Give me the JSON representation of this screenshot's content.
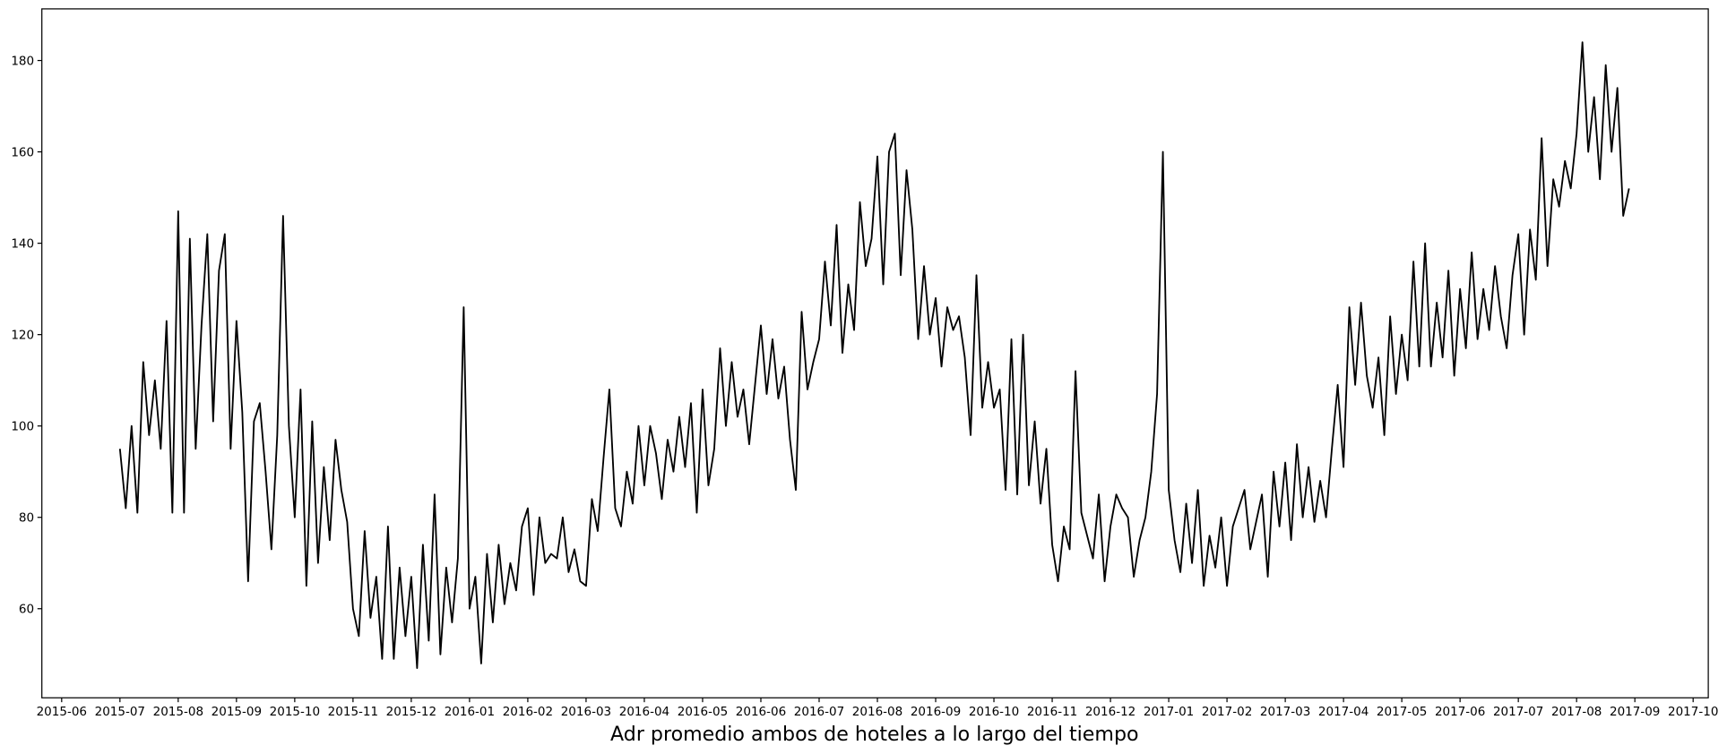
{
  "chart_data": {
    "type": "line",
    "xlabel": "Adr promedio ambos de hoteles a lo largo del tiempo",
    "color": "#000000",
    "xlim": [
      -0.34,
      28.26
    ],
    "ylim": [
      40.5,
      191.3
    ],
    "xticks": [
      {
        "value": 0,
        "label": "2015-06"
      },
      {
        "value": 1,
        "label": "2015-07"
      },
      {
        "value": 2,
        "label": "2015-08"
      },
      {
        "value": 3,
        "label": "2015-09"
      },
      {
        "value": 4,
        "label": "2015-10"
      },
      {
        "value": 5,
        "label": "2015-11"
      },
      {
        "value": 6,
        "label": "2015-12"
      },
      {
        "value": 7,
        "label": "2016-01"
      },
      {
        "value": 8,
        "label": "2016-02"
      },
      {
        "value": 9,
        "label": "2016-03"
      },
      {
        "value": 10,
        "label": "2016-04"
      },
      {
        "value": 11,
        "label": "2016-05"
      },
      {
        "value": 12,
        "label": "2016-06"
      },
      {
        "value": 13,
        "label": "2016-07"
      },
      {
        "value": 14,
        "label": "2016-08"
      },
      {
        "value": 15,
        "label": "2016-09"
      },
      {
        "value": 16,
        "label": "2016-10"
      },
      {
        "value": 17,
        "label": "2016-11"
      },
      {
        "value": 18,
        "label": "2016-12"
      },
      {
        "value": 19,
        "label": "2017-01"
      },
      {
        "value": 20,
        "label": "2017-02"
      },
      {
        "value": 21,
        "label": "2017-03"
      },
      {
        "value": 22,
        "label": "2017-04"
      },
      {
        "value": 23,
        "label": "2017-05"
      },
      {
        "value": 24,
        "label": "2017-06"
      },
      {
        "value": 25,
        "label": "2017-07"
      },
      {
        "value": 26,
        "label": "2017-08"
      },
      {
        "value": 27,
        "label": "2017-09"
      },
      {
        "value": 28,
        "label": "2017-10"
      }
    ],
    "yticks": [
      60,
      80,
      100,
      120,
      140,
      160,
      180
    ],
    "x": [
      1,
      1.1,
      1.2,
      1.3,
      1.4,
      1.5,
      1.6,
      1.7,
      1.8,
      1.9,
      2,
      2.1,
      2.2,
      2.3,
      2.4,
      2.5,
      2.6,
      2.7,
      2.8,
      2.9,
      3,
      3.1,
      3.2,
      3.3,
      3.4,
      3.5,
      3.6,
      3.7,
      3.8,
      3.9,
      4,
      4.1,
      4.2,
      4.3,
      4.4,
      4.5,
      4.6,
      4.7,
      4.8,
      4.9,
      5,
      5.1,
      5.2,
      5.3,
      5.4,
      5.5,
      5.6,
      5.7,
      5.8,
      5.9,
      6,
      6.1,
      6.2,
      6.3,
      6.4,
      6.5,
      6.6,
      6.7,
      6.8,
      6.9,
      7,
      7.1,
      7.2,
      7.3,
      7.4,
      7.5,
      7.6,
      7.7,
      7.8,
      7.9,
      8,
      8.1,
      8.2,
      8.3,
      8.4,
      8.5,
      8.6,
      8.7,
      8.8,
      8.9,
      9,
      9.1,
      9.2,
      9.3,
      9.4,
      9.5,
      9.6,
      9.7,
      9.8,
      9.9,
      10,
      10.1,
      10.2,
      10.3,
      10.4,
      10.5,
      10.6,
      10.7,
      10.8,
      10.9,
      11,
      11.1,
      11.2,
      11.3,
      11.4,
      11.5,
      11.6,
      11.7,
      11.8,
      11.9,
      12,
      12.1,
      12.2,
      12.3,
      12.4,
      12.5,
      12.6,
      12.7,
      12.8,
      12.9,
      13,
      13.1,
      13.2,
      13.3,
      13.4,
      13.5,
      13.6,
      13.7,
      13.8,
      13.9,
      14,
      14.1,
      14.2,
      14.3,
      14.4,
      14.5,
      14.6,
      14.7,
      14.8,
      14.9,
      15,
      15.1,
      15.2,
      15.3,
      15.4,
      15.5,
      15.6,
      15.7,
      15.8,
      15.9,
      16,
      16.1,
      16.2,
      16.3,
      16.4,
      16.5,
      16.6,
      16.7,
      16.8,
      16.9,
      17,
      17.1,
      17.2,
      17.3,
      17.4,
      17.5,
      17.6,
      17.7,
      17.8,
      17.9,
      18,
      18.1,
      18.2,
      18.3,
      18.4,
      18.5,
      18.6,
      18.7,
      18.8,
      18.9,
      19,
      19.1,
      19.2,
      19.3,
      19.4,
      19.5,
      19.6,
      19.7,
      19.8,
      19.9,
      20,
      20.1,
      20.2,
      20.3,
      20.4,
      20.5,
      20.6,
      20.7,
      20.8,
      20.9,
      21,
      21.1,
      21.2,
      21.3,
      21.4,
      21.5,
      21.6,
      21.7,
      21.8,
      21.9,
      22,
      22.1,
      22.2,
      22.3,
      22.4,
      22.5,
      22.6,
      22.7,
      22.8,
      22.9,
      23,
      23.1,
      23.2,
      23.3,
      23.4,
      23.5,
      23.6,
      23.7,
      23.8,
      23.9,
      24,
      24.1,
      24.2,
      24.3,
      24.4,
      24.5,
      24.6,
      24.7,
      24.8,
      24.9,
      25,
      25.1,
      25.2,
      25.3,
      25.4,
      25.5,
      25.6,
      25.7,
      25.8,
      25.9,
      26,
      26.1,
      26.2,
      26.3,
      26.4,
      26.5,
      26.6,
      26.7,
      26.8,
      26.9
    ],
    "values": [
      95,
      82,
      100,
      81,
      114,
      98,
      110,
      95,
      123,
      81,
      147,
      81,
      141,
      95,
      122,
      142,
      101,
      134,
      142,
      95,
      123,
      103,
      66,
      101,
      105,
      90,
      73,
      98,
      146,
      100,
      80,
      108,
      65,
      101,
      70,
      91,
      75,
      97,
      86,
      79,
      60,
      54,
      77,
      58,
      67,
      49,
      78,
      49,
      69,
      54,
      67,
      47,
      74,
      53,
      85,
      50,
      69,
      57,
      71,
      126,
      60,
      67,
      48,
      72,
      57,
      74,
      61,
      70,
      64,
      78,
      82,
      63,
      80,
      70,
      72,
      71,
      80,
      68,
      73,
      66,
      65,
      84,
      77,
      93,
      108,
      82,
      78,
      90,
      83,
      100,
      87,
      100,
      94,
      84,
      97,
      90,
      102,
      91,
      105,
      81,
      108,
      87,
      95,
      117,
      100,
      114,
      102,
      108,
      96,
      109,
      122,
      107,
      119,
      106,
      113,
      97,
      86,
      125,
      108,
      114,
      119,
      136,
      122,
      144,
      116,
      131,
      121,
      149,
      135,
      141,
      159,
      131,
      160,
      164,
      133,
      156,
      143,
      119,
      135,
      120,
      128,
      113,
      126,
      121,
      124,
      115,
      98,
      133,
      104,
      114,
      104,
      108,
      86,
      119,
      85,
      120,
      87,
      101,
      83,
      95,
      74,
      66,
      78,
      73,
      112,
      81,
      76,
      71,
      85,
      66,
      78,
      85,
      82,
      80,
      67,
      75,
      80,
      90,
      107,
      160,
      86,
      75,
      68,
      83,
      70,
      86,
      65,
      76,
      69,
      80,
      65,
      78,
      82,
      86,
      73,
      79,
      85,
      67,
      90,
      78,
      92,
      75,
      96,
      80,
      91,
      79,
      88,
      80,
      95,
      109,
      91,
      126,
      109,
      127,
      111,
      104,
      115,
      98,
      124,
      107,
      120,
      110,
      136,
      113,
      140,
      113,
      127,
      115,
      134,
      111,
      130,
      117,
      138,
      119,
      130,
      121,
      135,
      124,
      117,
      133,
      142,
      120,
      143,
      132,
      163,
      135,
      154,
      148,
      158,
      152,
      164,
      184,
      160,
      172,
      154,
      179,
      160,
      174,
      146,
      152
    ]
  }
}
